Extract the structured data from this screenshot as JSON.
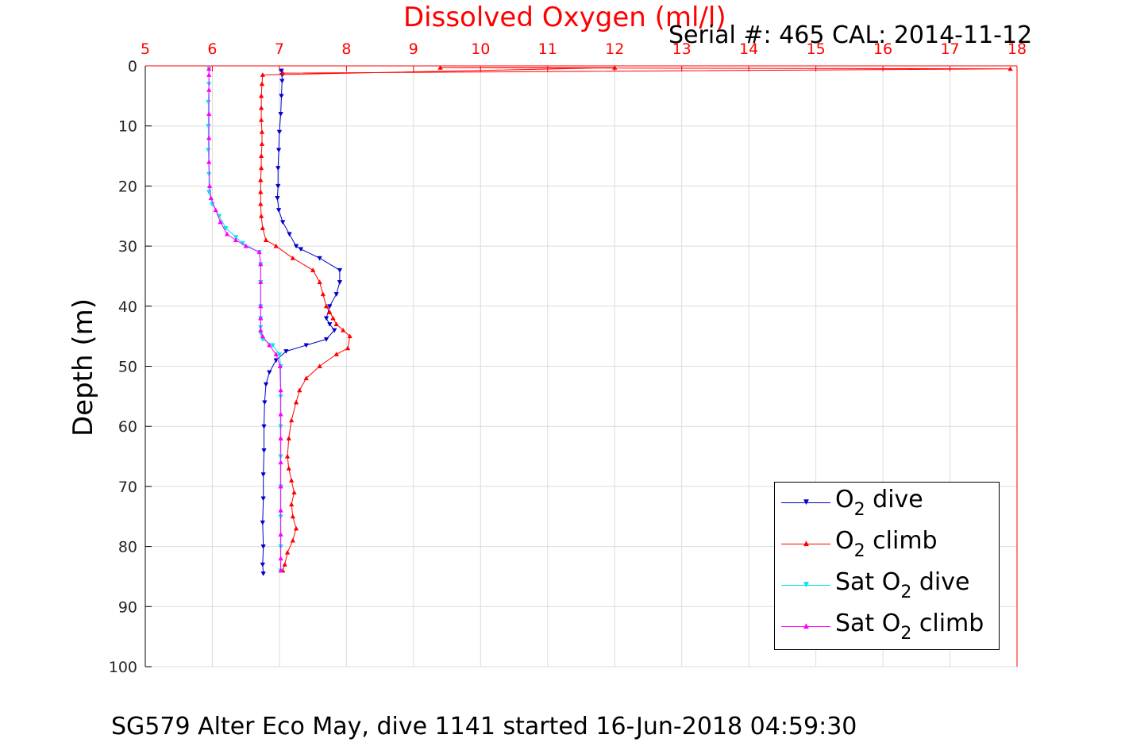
{
  "title": "Dissolved Oxygen (ml/l)",
  "serial_text": "Serial #: 465  CAL: 2014-11-12",
  "caption": "SG579 Alter Eco May, dive 1141 started 16-Jun-2018 04:59:30",
  "colors": {
    "dive": "#0000cc",
    "climb": "#ff0000",
    "sat_dive": "#00e5ee",
    "sat_climb": "#ff00ff",
    "top_axis": "#ff0000",
    "grid": "#dcdcdc"
  },
  "legend": [
    {
      "pre": "O",
      "sub": "2",
      "post": " dive",
      "color": "#0000cc",
      "marker": "▼"
    },
    {
      "pre": "O",
      "sub": "2",
      "post": " climb",
      "color": "#ff0000",
      "marker": "▲"
    },
    {
      "pre": "Sat O",
      "sub": "2",
      "post": " dive",
      "color": "#00e5ee",
      "marker": "▼"
    },
    {
      "pre": "Sat O",
      "sub": "2",
      "post": " climb",
      "color": "#ff00ff",
      "marker": "▲"
    }
  ],
  "chart_data": {
    "type": "line",
    "title": "Dissolved Oxygen (ml/l)",
    "xlabel": "Dissolved Oxygen (ml/l)",
    "ylabel": "Depth (m)",
    "xlim": [
      5,
      18
    ],
    "ylim": [
      0,
      100
    ],
    "y_reversed": true,
    "x_axis_position": "top",
    "xticks": [
      "5",
      "6",
      "7",
      "8",
      "9",
      "10",
      "11",
      "12",
      "13",
      "14",
      "15",
      "16",
      "17",
      "18"
    ],
    "yticks": [
      "0",
      "10",
      "20",
      "30",
      "40",
      "50",
      "60",
      "70",
      "80",
      "90",
      "100"
    ],
    "grid": true,
    "legend_position": "bottom-right",
    "series": [
      {
        "name": "O2 dive",
        "color": "#0000cc",
        "marker": "down",
        "x": [
          7.03,
          7.04,
          7.04,
          7.03,
          7.02,
          7.0,
          6.99,
          6.98,
          6.98,
          6.97,
          6.99,
          7.05,
          7.15,
          7.25,
          7.32,
          7.6,
          7.9,
          7.9,
          7.85,
          7.75,
          7.7,
          7.75,
          7.82,
          7.7,
          7.4,
          7.1,
          6.95,
          6.85,
          6.8,
          6.78,
          6.77,
          6.77,
          6.76,
          6.76,
          6.75,
          6.76,
          6.75,
          6.76
        ],
        "y": [
          0.8,
          1.5,
          2.5,
          5,
          8,
          11,
          14,
          17,
          20,
          22,
          24,
          26,
          28,
          30,
          30.5,
          32,
          34,
          36,
          38,
          40,
          42,
          43,
          44,
          45.5,
          46.5,
          47.5,
          49,
          51,
          53,
          56,
          60,
          64,
          68,
          72,
          76,
          80,
          83,
          84.5
        ]
      },
      {
        "name": "O2 climb",
        "color": "#ff0000",
        "marker": "up",
        "x": [
          7.05,
          7.08,
          7.12,
          7.2,
          7.25,
          7.2,
          7.18,
          7.22,
          7.18,
          7.14,
          7.12,
          7.14,
          7.18,
          7.25,
          7.3,
          7.4,
          7.6,
          7.85,
          8.02,
          8.05,
          7.95,
          7.85,
          7.8,
          7.75,
          7.7,
          7.65,
          7.6,
          7.5,
          7.2,
          6.95,
          6.8,
          6.75,
          6.73,
          6.72,
          6.72,
          6.72,
          6.73,
          6.73,
          6.74,
          6.74,
          6.73,
          6.73,
          6.73,
          6.74,
          6.75,
          12.0,
          9.4,
          17.9,
          7.05
        ],
        "y": [
          84,
          83,
          81,
          79,
          77,
          75,
          73,
          71,
          69,
          67,
          65,
          62,
          59,
          56,
          54,
          52,
          50,
          48,
          47,
          45,
          44,
          43,
          42,
          41,
          40,
          38,
          36,
          34,
          32,
          30,
          29,
          27,
          25,
          23,
          21,
          19,
          17,
          15,
          13,
          11,
          9,
          7,
          5,
          3,
          1.5,
          0.3,
          0.3,
          0.5,
          1.2
        ]
      },
      {
        "name": "Sat O2 dive",
        "color": "#00e5ee",
        "marker": "down",
        "x": [
          5.95,
          5.95,
          5.94,
          5.94,
          5.94,
          5.95,
          5.95,
          6.0,
          6.1,
          6.2,
          6.35,
          6.45,
          6.7,
          6.72,
          6.72,
          6.72,
          6.72,
          6.72,
          6.72,
          6.75,
          6.9,
          7.0,
          7.02,
          7.02,
          7.02,
          7.02,
          7.02,
          7.02,
          7.02,
          7.02
        ],
        "y": [
          0.5,
          3,
          6,
          10,
          14,
          18,
          21,
          23,
          25,
          27,
          28.5,
          29.5,
          31,
          33,
          36,
          40,
          42,
          43.5,
          44.5,
          45.5,
          46.5,
          48,
          50,
          55,
          60,
          65,
          70,
          75,
          80,
          84
        ]
      },
      {
        "name": "Sat O2 climb",
        "color": "#ff00ff",
        "marker": "up",
        "x": [
          7.02,
          7.02,
          7.02,
          7.02,
          7.02,
          7.02,
          7.02,
          7.02,
          7.02,
          7.01,
          6.95,
          6.85,
          6.75,
          6.72,
          6.72,
          6.72,
          6.72,
          6.72,
          6.7,
          6.5,
          6.35,
          6.22,
          6.12,
          6.05,
          5.98,
          5.96,
          5.95,
          5.95,
          5.95,
          5.95,
          5.95,
          5.95
        ],
        "y": [
          84,
          82,
          78,
          74,
          70,
          66,
          62,
          58,
          54,
          50,
          48,
          46.5,
          45,
          44,
          42,
          40,
          36,
          33,
          31,
          30,
          29,
          28,
          26,
          24,
          22,
          20,
          16,
          12,
          8,
          4,
          1.5,
          0.5
        ]
      }
    ]
  }
}
